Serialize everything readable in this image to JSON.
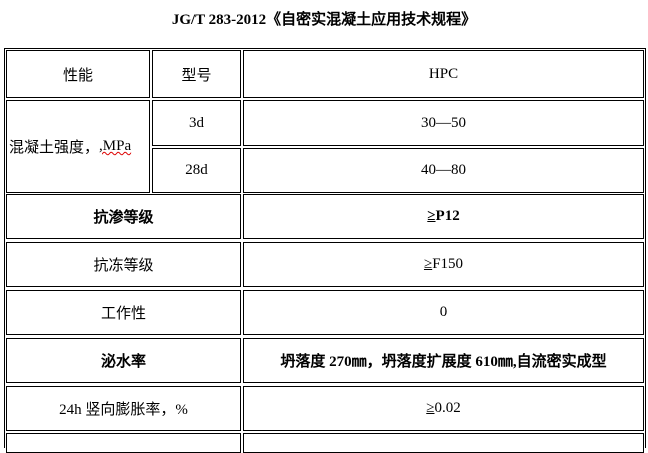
{
  "title": "JG/T 283-2012《自密实混凝土应用技术规程》",
  "header": {
    "col1": "性能",
    "col2": "型号",
    "col3": "HPC"
  },
  "strength": {
    "label_prefix": "混凝土强度，",
    "label_unit": ",MPa",
    "rows": [
      {
        "age": "3d",
        "value": "30—50"
      },
      {
        "age": "28d",
        "value": "40—80"
      }
    ]
  },
  "rows": [
    {
      "property": "抗渗等级",
      "value_symbol": "≥",
      "value": "P12",
      "bold": true
    },
    {
      "property": "抗冻等级",
      "value_symbol": "≥",
      "value": "F150"
    },
    {
      "property": "工作性",
      "value_symbol": "",
      "value": "0"
    },
    {
      "property": "泌水率",
      "value_symbol": "",
      "value": "坍落度 270㎜，坍落度扩展度 610㎜,自流密实成型",
      "bold": true
    },
    {
      "property": "24h 竖向膨胀率，%",
      "value_symbol": "≥",
      "value": "0.02"
    }
  ]
}
